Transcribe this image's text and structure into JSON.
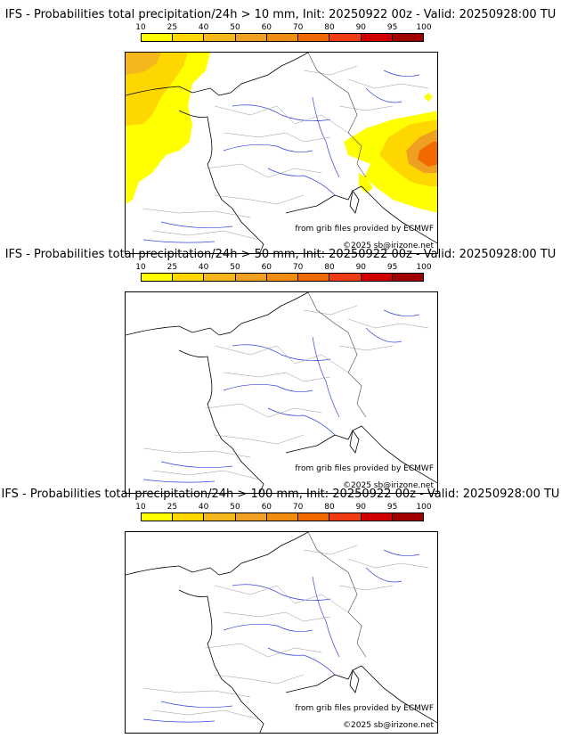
{
  "legend": {
    "labels": [
      "10",
      "25",
      "40",
      "50",
      "60",
      "70",
      "80",
      "90",
      "95",
      "100"
    ],
    "colors": [
      "#ffff00",
      "#ffd700",
      "#f5b81c",
      "#f0a020",
      "#f08c10",
      "#f06a00",
      "#f03c14",
      "#d00000",
      "#a00000",
      "#600000"
    ]
  },
  "panels": [
    {
      "title": "IFS - Probabilities total precipitation/24h > 10 mm, Init: 20250922 00z - Valid: 20250928:00 TU",
      "source_credit": "from grib files provided by ECMWF",
      "copyright": "©2025 sb@irizone.net",
      "has_precip": true
    },
    {
      "title": "IFS - Probabilities total precipitation/24h > 50 mm, Init: 20250922 00z - Valid: 20250928:00 TU",
      "source_credit": "from grib files provided by ECMWF",
      "copyright": "©2025 sb@irizone.net",
      "has_precip": false
    },
    {
      "title": "IFS - Probabilities total precipitation/24h > 100 mm, Init: 20250922 00z - Valid: 20250928:00 TU",
      "source_credit": "from grib files provided by ECMWF",
      "copyright": "©2025 sb@irizone.net",
      "has_precip": false
    }
  ]
}
